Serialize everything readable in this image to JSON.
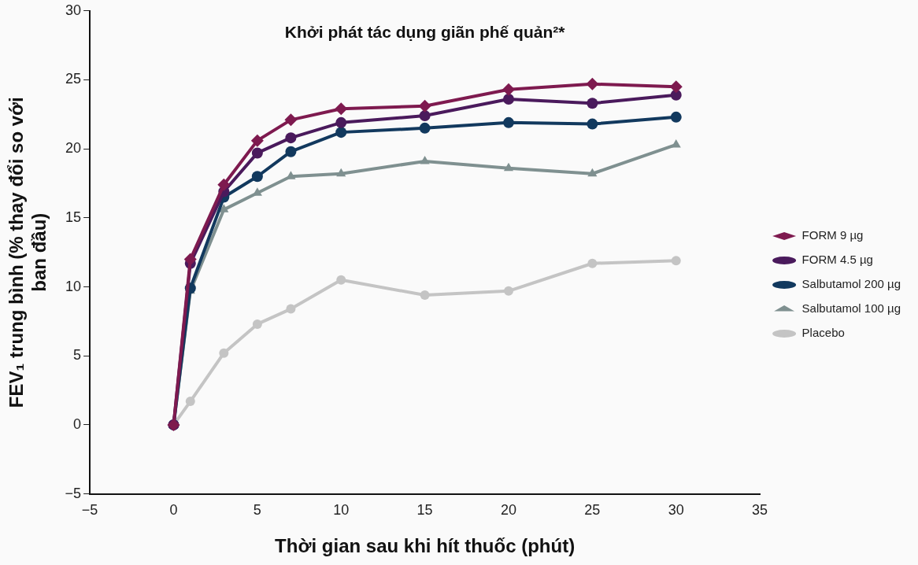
{
  "chart_data": {
    "type": "line",
    "title": "Khởi phát tác dụng giãn phế quản²*",
    "xlabel": "Thời gian sau khi hít thuốc (phút)",
    "ylabel": "FEV₁ trung bình (% thay đổi so với ban đầu)",
    "x": [
      0,
      1,
      3,
      5,
      7,
      10,
      15,
      20,
      25,
      30
    ],
    "xlim": [
      -5,
      35
    ],
    "xticks": [
      -5,
      0,
      5,
      10,
      15,
      20,
      25,
      30,
      35
    ],
    "ylim": [
      -5,
      30
    ],
    "yticks": [
      -5,
      0,
      5,
      10,
      15,
      20,
      25,
      30
    ],
    "grid": false,
    "legend": "right",
    "line_style": "solid",
    "series": [
      {
        "name": "FORM 9 µg",
        "color": "#7e1a4f",
        "marker": "diamond",
        "values": [
          0,
          12.0,
          17.4,
          20.6,
          22.1,
          22.9,
          23.1,
          24.3,
          24.7,
          24.5
        ]
      },
      {
        "name": "FORM 4.5 µg",
        "color": "#4a1a5c",
        "marker": "circle",
        "values": [
          0,
          11.7,
          16.9,
          19.7,
          20.8,
          21.9,
          22.4,
          23.6,
          23.3,
          23.9
        ]
      },
      {
        "name": "Salbutamol 200 µg",
        "color": "#12395e",
        "marker": "circle",
        "values": [
          0,
          9.9,
          16.5,
          18.0,
          19.8,
          21.2,
          21.5,
          21.9,
          21.8,
          22.3
        ]
      },
      {
        "name": "Salbutamol 100 µg",
        "color": "#7f9090",
        "marker": "triangle",
        "values": [
          0,
          9.7,
          15.6,
          16.8,
          18.0,
          18.2,
          19.1,
          18.6,
          18.2,
          20.3
        ]
      },
      {
        "name": "Placebo",
        "color": "#c4c4c4",
        "marker": "circle",
        "values": [
          0,
          1.7,
          5.2,
          7.3,
          8.4,
          10.5,
          9.4,
          9.7,
          11.7,
          11.9
        ]
      }
    ]
  }
}
